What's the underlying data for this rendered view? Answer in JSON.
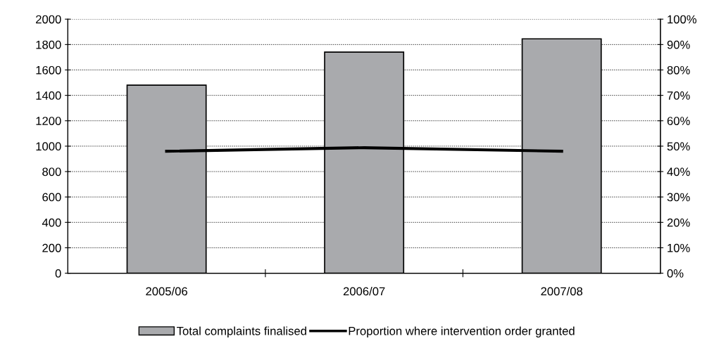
{
  "chart_data": {
    "type": "bar",
    "categories": [
      "2005/06",
      "2006/07",
      "2007/08"
    ],
    "series": [
      {
        "name": "Total complaints finalised",
        "color": "#a9aaad",
        "values": [
          1480,
          1740,
          1845
        ]
      },
      {
        "name": "Proportion where intervention order granted",
        "type": "line",
        "axis": "y2",
        "color": "#000000",
        "values": [
          48,
          49.4,
          48
        ]
      }
    ],
    "ylim": [
      0,
      2000
    ],
    "yticks": [
      0,
      200,
      400,
      600,
      800,
      1000,
      1200,
      1400,
      1600,
      1800,
      2000
    ],
    "y2lim": [
      0,
      100
    ],
    "y2ticks": [
      {
        "value": 0,
        "label": "0%"
      },
      {
        "value": 10,
        "label": "10%"
      },
      {
        "value": 20,
        "label": "20%"
      },
      {
        "value": 30,
        "label": "30%"
      },
      {
        "value": 40,
        "label": "40%"
      },
      {
        "value": 50,
        "label": "50%"
      },
      {
        "value": 60,
        "label": "60%"
      },
      {
        "value": 70,
        "label": "70%"
      },
      {
        "value": 80,
        "label": "80%"
      },
      {
        "value": 90,
        "label": "90%"
      },
      {
        "value": 100,
        "label": "100%"
      }
    ],
    "grid": "y",
    "legend": "bottom",
    "marker": "none",
    "line_style": "solid"
  }
}
